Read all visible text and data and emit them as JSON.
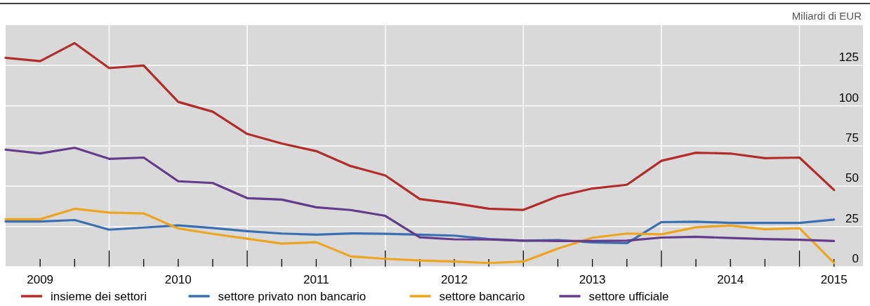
{
  "chart_data": {
    "type": "line",
    "ylabel": "Miliardi di EUR",
    "x": [
      2009.25,
      2009.5,
      2009.75,
      2010,
      2010.25,
      2010.5,
      2010.75,
      2011,
      2011.25,
      2011.5,
      2011.75,
      2012,
      2012.25,
      2012.5,
      2012.75,
      2013,
      2013.25,
      2013.5,
      2013.75,
      2014,
      2014.25,
      2014.5,
      2014.75,
      2015,
      2015.25
    ],
    "series": [
      {
        "name": "insieme dei settori",
        "color": "#b22d2a",
        "values": [
          129.8,
          127.7,
          138.9,
          123.4,
          125,
          102.4,
          96.3,
          82.5,
          76.5,
          71.8,
          62.5,
          56.7,
          42,
          39.4,
          36,
          35.3,
          43.7,
          48.6,
          50.9,
          65.8,
          70.8,
          70.3,
          67.4,
          67.8,
          47.7
        ]
      },
      {
        "name": "settore privato non bancario",
        "color": "#3a6fb0",
        "values": [
          28.1,
          28.1,
          29,
          23,
          24.3,
          25.7,
          24,
          22.1,
          20.6,
          19.9,
          20.7,
          20.4,
          19.9,
          19.3,
          17.2,
          16.2,
          16.5,
          15.1,
          14.6,
          27.7,
          28,
          27.2,
          27.2,
          27.2,
          29.3
        ]
      },
      {
        "name": "settore bancario",
        "color": "#eda521",
        "values": [
          29.5,
          29.5,
          36,
          33.6,
          33.1,
          23.8,
          20.4,
          17.4,
          14.3,
          15.2,
          6.4,
          4.9,
          3.9,
          3.2,
          2.3,
          3.2,
          11.2,
          18,
          20.6,
          20.1,
          24.5,
          25.6,
          23.3,
          23.9,
          2.3
        ]
      },
      {
        "name": "settore ufficiale",
        "color": "#653b8c",
        "values": [
          72.7,
          70.4,
          73.9,
          67,
          67.8,
          53.1,
          52,
          42.6,
          41.7,
          36.9,
          35.2,
          31.6,
          18.3,
          17,
          16.9,
          16.2,
          16,
          16,
          16.2,
          18.1,
          18.6,
          17.8,
          17.2,
          16.7,
          16
        ]
      }
    ],
    "xlim": [
      2009.25,
      2015.46
    ],
    "xticks": [
      {
        "value": 2009.5,
        "label": "2009"
      },
      {
        "value": 2010.5,
        "label": "2010"
      },
      {
        "value": 2011.5,
        "label": "2011"
      },
      {
        "value": 2012.5,
        "label": "2012"
      },
      {
        "value": 2013.5,
        "label": "2013"
      },
      {
        "value": 2014.5,
        "label": "2014"
      },
      {
        "value": 2015.25,
        "label": "2015"
      },
      {
        "value": 2009.5,
        "label": null
      },
      {
        "value": 2009.75,
        "label": null
      },
      {
        "value": 2010,
        "label": null
      },
      {
        "value": 2010.25,
        "label": null
      },
      {
        "value": 2010.5,
        "label": null
      },
      {
        "value": 2010.75,
        "label": null
      },
      {
        "value": 2011,
        "label": null
      },
      {
        "value": 2011.25,
        "label": null
      },
      {
        "value": 2011.5,
        "label": null
      },
      {
        "value": 2011.75,
        "label": null
      },
      {
        "value": 2012,
        "label": null
      },
      {
        "value": 2012.25,
        "label": null
      },
      {
        "value": 2012.5,
        "label": null
      },
      {
        "value": 2012.75,
        "label": null
      },
      {
        "value": 2013,
        "label": null
      },
      {
        "value": 2013.25,
        "label": null
      },
      {
        "value": 2013.5,
        "label": null
      },
      {
        "value": 2013.75,
        "label": null
      },
      {
        "value": 2014,
        "label": null
      },
      {
        "value": 2014.25,
        "label": null
      },
      {
        "value": 2014.5,
        "label": null
      },
      {
        "value": 2014.75,
        "label": null
      },
      {
        "value": 2015,
        "label": null
      },
      {
        "value": 2015.25,
        "label": null
      }
    ],
    "ylim": [
      0,
      150
    ],
    "yticks": [
      0,
      25,
      50,
      75,
      100,
      125
    ],
    "grid": true,
    "legend": "bottom",
    "marker": "none",
    "line_style": "solid"
  }
}
